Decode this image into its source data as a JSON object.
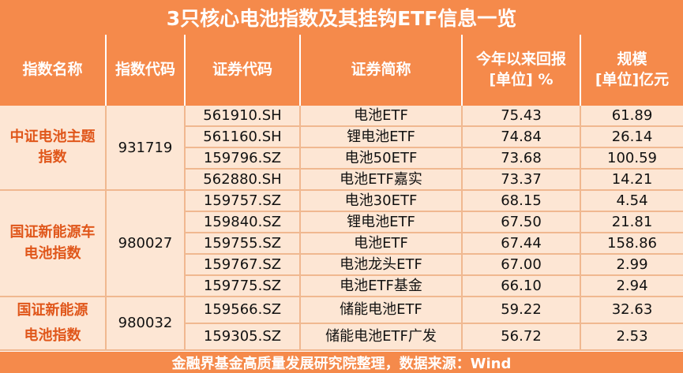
{
  "title": "3只核心电池指数及其挂钩ETF信息一览",
  "headers": {
    "index_name": "指数名称",
    "index_code": "指数代码",
    "security_code": "证券代码",
    "security_name": "证券简称",
    "ytd_return_line1": "今年以来回报",
    "ytd_return_line2": "[单位] %",
    "scale_line1": "规模",
    "scale_line2": "[单位]亿元"
  },
  "groups": [
    {
      "index_name_line1": "中证电池主题",
      "index_name_line2": "指数",
      "index_code": "931719",
      "rows": [
        {
          "code": "561910.SH",
          "name": "电池ETF",
          "ret": "75.43",
          "scale": "61.89"
        },
        {
          "code": "561160.SH",
          "name": "锂电池ETF",
          "ret": "74.84",
          "scale": "26.14"
        },
        {
          "code": "159796.SZ",
          "name": "电池50ETF",
          "ret": "73.68",
          "scale": "100.59"
        },
        {
          "code": "562880.SH",
          "name": "电池ETF嘉实",
          "ret": "73.37",
          "scale": "14.21"
        }
      ]
    },
    {
      "index_name_line1": "国证新能源车",
      "index_name_line2": "电池指数",
      "index_code": "980027",
      "rows": [
        {
          "code": "159757.SZ",
          "name": "电池30ETF",
          "ret": "68.15",
          "scale": "4.54"
        },
        {
          "code": "159840.SZ",
          "name": "锂电池ETF",
          "ret": "67.50",
          "scale": "21.81"
        },
        {
          "code": "159755.SZ",
          "name": "电池ETF",
          "ret": "67.44",
          "scale": "158.86"
        },
        {
          "code": "159767.SZ",
          "name": "电池龙头ETF",
          "ret": "67.00",
          "scale": "2.99"
        },
        {
          "code": "159775.SZ",
          "name": "电池ETF基金",
          "ret": "66.10",
          "scale": "2.94"
        }
      ]
    },
    {
      "index_name_line1": "国证新能源",
      "index_name_line2": "电池指数",
      "index_code": "980032",
      "rows": [
        {
          "code": "159566.SZ",
          "name": "储能电池ETF",
          "ret": "59.22",
          "scale": "32.63"
        },
        {
          "code": "159305.SZ",
          "name": "储能电池ETF广发",
          "ret": "56.72",
          "scale": "2.53"
        }
      ]
    }
  ],
  "footer": "金融界基金高质量发展研究院整理，数据来源：Wind",
  "colors": {
    "header_bg": "#f58a4b",
    "cell_bg": "#fde6d4",
    "index_name_text": "#e0571b"
  }
}
